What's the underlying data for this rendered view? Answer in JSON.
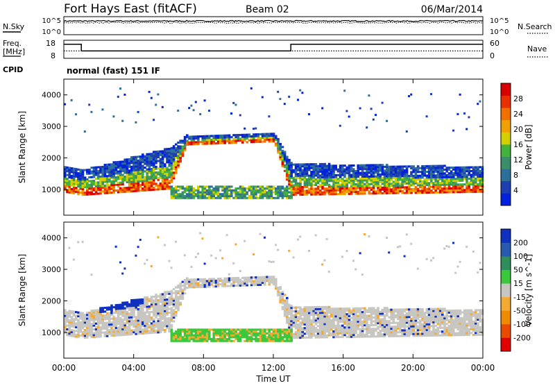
{
  "header": {
    "station": "Fort Hays East (fitACF)",
    "beam": "Beam 02",
    "date": "06/Mar/2014"
  },
  "labels": {
    "nsky": "N.Sky",
    "nsearch": "N.Search",
    "freq_line1": "Freq.",
    "freq_line2": "[MHz]",
    "nave": "Nave",
    "cpid": "CPID",
    "cpid_value": "normal (fast) 151 IF",
    "noise_tick_top": "10^5",
    "noise_tick_bottom": "10^0",
    "freq_tick_top": "18",
    "freq_tick_bottom": "8",
    "nave_tick_top": "60",
    "nave_tick_bottom": "0"
  },
  "colors": {
    "power": [
      "#0022dd",
      "#1f3fb0",
      "#2e6f9a",
      "#3a8f6a",
      "#43b23a",
      "#d4d000",
      "#f0a000",
      "#f07000",
      "#e83000",
      "#d80000"
    ],
    "velocity_neg": [
      "#e00000",
      "#ea4a00",
      "#f08a00",
      "#f2aa30"
    ],
    "velocity_pos": [
      "#3cc83c",
      "#2e8f5c",
      "#2a5ab0",
      "#1030c0"
    ],
    "velocity_zero": "#c8c6c0"
  },
  "chart_data": [
    {
      "type": "line",
      "title": "N.Sky / N.Search",
      "x": [
        0,
        24
      ],
      "yscale": "log",
      "ylim": [
        1,
        100000
      ],
      "series": [
        {
          "name": "N.Sky",
          "approx_level_exp": 3.9
        },
        {
          "name": "N.Search",
          "approx_level_exp": 3.4
        }
      ]
    },
    {
      "type": "line",
      "title": "Freq. [MHz] / Nave",
      "x": [
        0,
        1,
        1,
        13,
        13,
        24
      ],
      "series": [
        {
          "name": "Freq.",
          "values": [
            16,
            16,
            12,
            12,
            16,
            16
          ],
          "ylim": [
            8,
            18
          ]
        },
        {
          "name": "Nave",
          "values": [
            24,
            24,
            24,
            24,
            24,
            24
          ],
          "ylim": [
            0,
            60
          ]
        }
      ]
    },
    {
      "type": "heatmap",
      "parameter": "Power",
      "xlabel": "Time UT",
      "ylabel": "Slant Range [km]",
      "colorbar_label": "Power [dB]",
      "colorbar_ticks": [
        "4",
        "8",
        "12",
        "16",
        "20",
        "24",
        "28"
      ],
      "xlim": [
        0,
        24
      ],
      "ylim": [
        180,
        4500
      ],
      "yticks": [
        "1000",
        "2000",
        "3000",
        "4000"
      ],
      "regions": [
        {
          "t": [
            0,
            1,
            6,
            7,
            12,
            13,
            24
          ],
          "lo": [
            900,
            800,
            1000,
            2400,
            2500,
            800,
            900
          ],
          "hi": [
            1700,
            1600,
            2300,
            2700,
            2800,
            1800,
            1700
          ]
        },
        {
          "t": [
            6,
            13
          ],
          "lo": [
            700,
            700
          ],
          "hi": [
            1100,
            1100
          ]
        }
      ]
    },
    {
      "type": "heatmap",
      "parameter": "Velocity",
      "xlabel": "Time UT",
      "ylabel": "Slant Range [km]",
      "colorbar_label": "Velocity [m s^-1]",
      "colorbar_ticks": [
        "-200",
        "-100",
        "-50",
        "-15",
        "15",
        "50",
        "100",
        "200"
      ],
      "xlim": [
        0,
        24
      ],
      "ylim": [
        180,
        4500
      ],
      "yticks": [
        "1000",
        "2000",
        "3000",
        "4000"
      ],
      "xticks": [
        "00:00",
        "04:00",
        "08:00",
        "12:00",
        "16:00",
        "20:00",
        "00:00"
      ]
    }
  ]
}
